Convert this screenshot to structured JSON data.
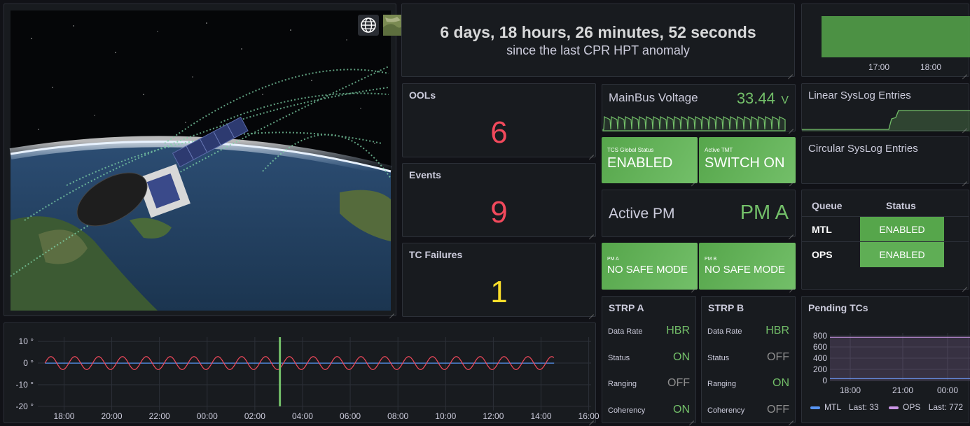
{
  "globe": {
    "view_buttons": [
      "globe-icon",
      "satellite-map-icon"
    ]
  },
  "anomaly": {
    "time": "6 days, 18 hours, 26 minutes, 52 seconds",
    "caption": "since the last CPR HPT anomaly"
  },
  "topchart": {
    "ticks": [
      "17:00",
      "18:00"
    ]
  },
  "stats": [
    {
      "title": "OOLs",
      "value": "6",
      "color": "#f2495c"
    },
    {
      "title": "Events",
      "value": "9",
      "color": "#f2495c"
    },
    {
      "title": "TC Failures",
      "value": "1",
      "color": "#fade2a"
    }
  ],
  "mainbus": {
    "label": "MainBus Voltage",
    "value": "33.44",
    "unit": "V"
  },
  "tcs": {
    "label": "TCS Global Status",
    "value": "ENABLED"
  },
  "tmt": {
    "label": "Active TMT",
    "value": "SWITCH ON"
  },
  "activepm": {
    "label": "Active PM",
    "value": "PM A"
  },
  "pma": {
    "label": "PM A",
    "value": "NO SAFE MODE"
  },
  "pmb": {
    "label": "PM B",
    "value": "NO SAFE MODE"
  },
  "strpa": {
    "title": "STRP A",
    "rows": [
      {
        "k": "Data Rate",
        "v": "HBR",
        "c": "#73bf69"
      },
      {
        "k": "Status",
        "v": "ON",
        "c": "#73bf69"
      },
      {
        "k": "Ranging",
        "v": "OFF",
        "c": "#8e8e8e"
      },
      {
        "k": "Coherency",
        "v": "ON",
        "c": "#73bf69"
      }
    ]
  },
  "strpb": {
    "title": "STRP B",
    "rows": [
      {
        "k": "Data Rate",
        "v": "HBR",
        "c": "#73bf69"
      },
      {
        "k": "Status",
        "v": "OFF",
        "c": "#8e8e8e"
      },
      {
        "k": "Ranging",
        "v": "ON",
        "c": "#73bf69"
      },
      {
        "k": "Coherency",
        "v": "OFF",
        "c": "#8e8e8e"
      }
    ]
  },
  "linear": {
    "title": "Linear SysLog Entries"
  },
  "circular": {
    "title": "Circular SysLog Entries"
  },
  "queue": {
    "headers": [
      "Queue",
      "Status"
    ],
    "rows": [
      {
        "name": "MTL",
        "status": "ENABLED"
      },
      {
        "name": "OPS",
        "status": "ENABLED"
      }
    ]
  },
  "pending": {
    "title": "Pending TCs",
    "legend": [
      {
        "name": "MTL",
        "last_label": "Last:",
        "last": "33",
        "color": "#5794f2"
      },
      {
        "name": "OPS",
        "last_label": "Last:",
        "last": "772",
        "color": "#ca95e5"
      }
    ]
  },
  "chart_data": [
    {
      "type": "line",
      "x_ticks": [
        "18:00",
        "20:00",
        "22:00",
        "00:00",
        "02:00",
        "04:00",
        "06:00",
        "08:00",
        "10:00",
        "12:00",
        "14:00",
        "16:00"
      ],
      "y_ticks": [
        "10 °",
        "0 °",
        "-10 °",
        "-20 °"
      ],
      "ylim": [
        -22,
        12
      ],
      "xlim": [
        16.9,
        40.1
      ],
      "series": [
        {
          "color": "#f2495c",
          "x_start": 17.2,
          "x_end": 38.55,
          "amplitude": 3,
          "period_hours": 1.0
        },
        {
          "color": "#5794f2",
          "x_start": 17.2,
          "x_end": 38.55,
          "constant": 0
        },
        {
          "color": "#73bf69",
          "spike_x": 27.05,
          "spike_min": -20,
          "spike_max": 12
        }
      ]
    },
    {
      "type": "line",
      "y_ticks": [
        "800",
        "600",
        "400",
        "200",
        "0"
      ],
      "x_ticks": [
        "18:00",
        "21:00",
        "00:00"
      ],
      "ylim": [
        0,
        850
      ],
      "series": [
        {
          "name": "MTL",
          "values": [
            33,
            33,
            33,
            33,
            33,
            33,
            33
          ]
        },
        {
          "name": "OPS",
          "values": [
            772,
            772,
            772,
            772,
            772,
            772,
            772
          ]
        }
      ]
    }
  ]
}
